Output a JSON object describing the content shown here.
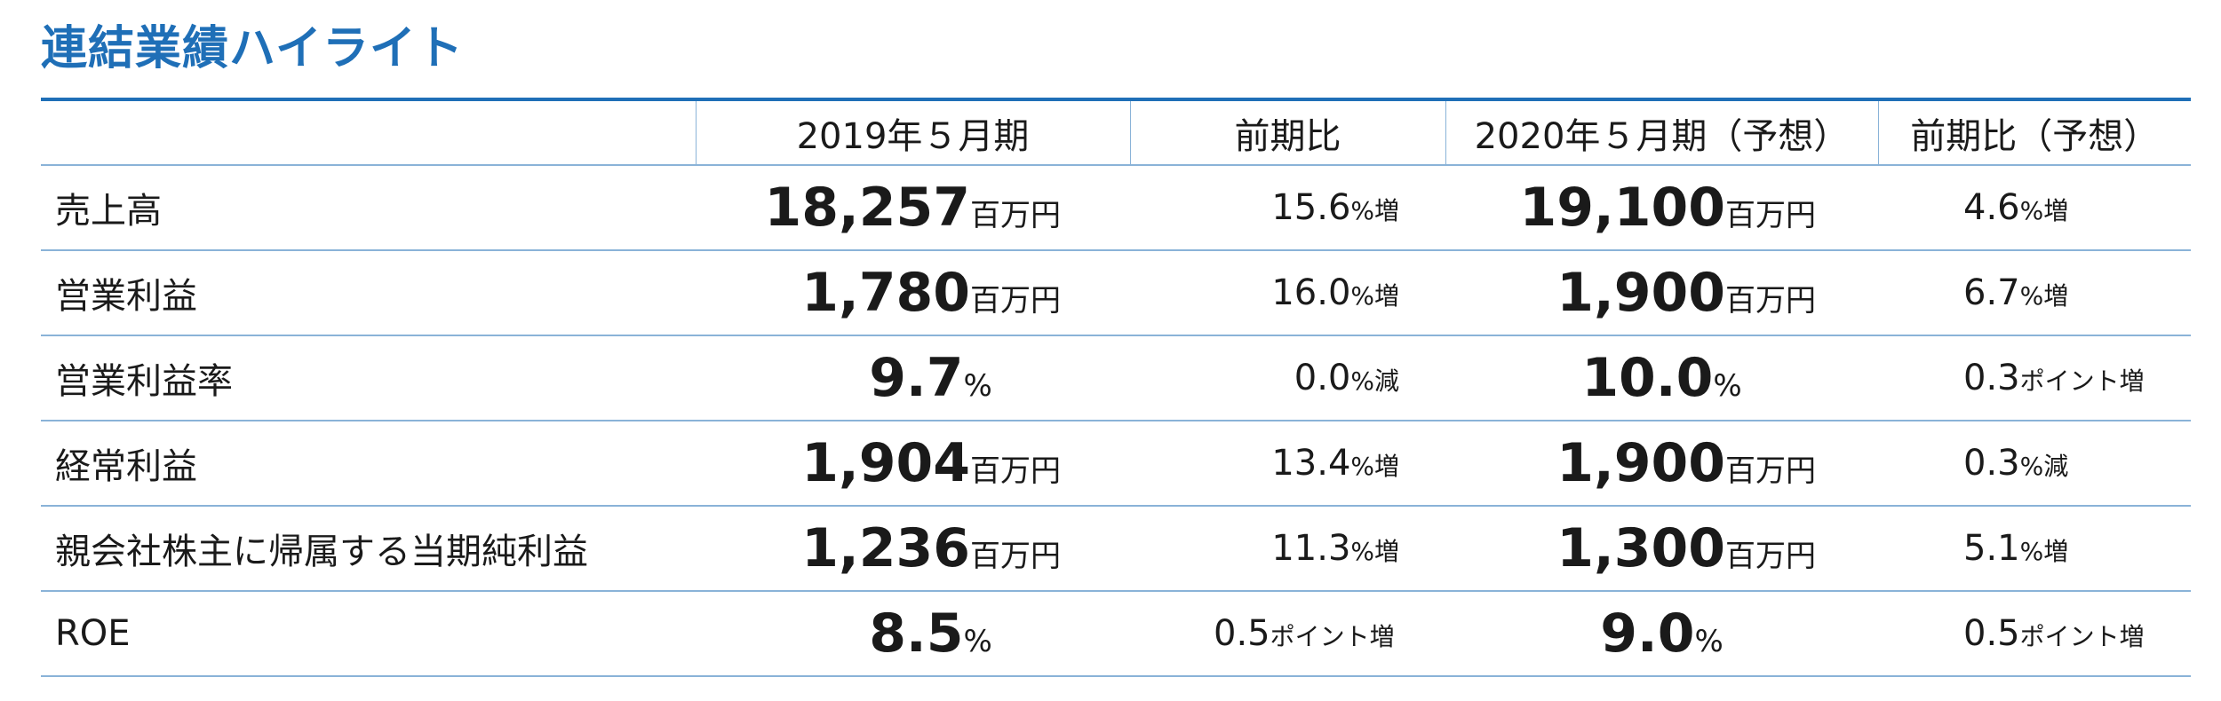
{
  "title": "連結業績ハイライト",
  "header": {
    "col0": "",
    "col1": "2019年５月期",
    "col2": "前期比",
    "col3": "2020年５月期（予想）",
    "col4": "前期比（予想）"
  },
  "rows": [
    {
      "label": "売上高",
      "v2019": "18,257",
      "u2019": "百万円",
      "chg": "15.6",
      "chg_u": "%増",
      "v2020": "19,100",
      "u2020": "百万円",
      "chg2": "4.6",
      "chg2_u": "%増"
    },
    {
      "label": "営業利益",
      "v2019": "1,780",
      "u2019": "百万円",
      "chg": "16.0",
      "chg_u": "%増",
      "v2020": "1,900",
      "u2020": "百万円",
      "chg2": "6.7",
      "chg2_u": "%増"
    },
    {
      "label": "営業利益率",
      "v2019": "9.7",
      "u2019": "%",
      "chg": "0.0",
      "chg_u": "%減",
      "v2020": "10.0",
      "u2020": "%",
      "chg2": "0.3",
      "chg2_u": "ポイント増"
    },
    {
      "label": "経常利益",
      "v2019": "1,904",
      "u2019": "百万円",
      "chg": "13.4",
      "chg_u": "%増",
      "v2020": "1,900",
      "u2020": "百万円",
      "chg2": "0.3",
      "chg2_u": "%減"
    },
    {
      "label": "親会社株主に帰属する当期純利益",
      "v2019": "1,236",
      "u2019": "百万円",
      "chg": "11.3",
      "chg_u": "%増",
      "v2020": "1,300",
      "u2020": "百万円",
      "chg2": "5.1",
      "chg2_u": "%増"
    },
    {
      "label": "ROE",
      "v2019": "8.5",
      "u2019": "%",
      "chg": "0.5",
      "chg_u": "ポイント増",
      "v2020": "9.0",
      "u2020": "%",
      "chg2": "0.5",
      "chg2_u": "ポイント増"
    }
  ],
  "colors": {
    "accent": "#1f6fb7",
    "rule": "#8ab3d8",
    "text": "#1a1a1a"
  }
}
